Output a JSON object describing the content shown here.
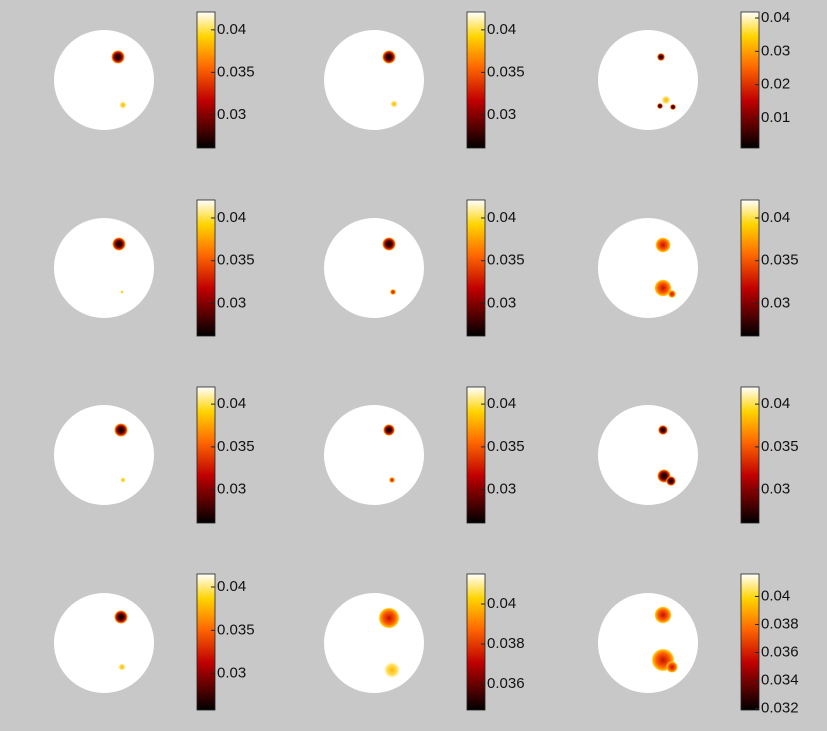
{
  "panels": [
    {
      "colorbar": {
        "clim": [
          0.0261,
          0.0421
        ],
        "ticks": [
          0.03,
          0.035,
          0.04
        ]
      }
    },
    {
      "colorbar": {
        "clim": [
          0.0261,
          0.0421
        ],
        "ticks": [
          0.03,
          0.035,
          0.04
        ]
      }
    },
    {
      "colorbar": {
        "clim": [
          0.001,
          0.0418
        ],
        "ticks": [
          0.01,
          0.02,
          0.03,
          0.04
        ]
      }
    },
    {
      "colorbar": {
        "clim": [
          0.0262,
          0.0421
        ],
        "ticks": [
          0.03,
          0.035,
          0.04
        ]
      }
    },
    {
      "colorbar": {
        "clim": [
          0.0262,
          0.0421
        ],
        "ticks": [
          0.03,
          0.035,
          0.04
        ]
      }
    },
    {
      "colorbar": {
        "clim": [
          0.0262,
          0.0421
        ],
        "ticks": [
          0.03,
          0.035,
          0.04
        ]
      }
    },
    {
      "colorbar": {
        "clim": [
          0.0261,
          0.042
        ],
        "ticks": [
          0.03,
          0.035,
          0.04
        ]
      }
    },
    {
      "colorbar": {
        "clim": [
          0.0261,
          0.042
        ],
        "ticks": [
          0.03,
          0.035,
          0.04
        ]
      }
    },
    {
      "colorbar": {
        "clim": [
          0.0261,
          0.042
        ],
        "ticks": [
          0.03,
          0.035,
          0.04
        ]
      }
    },
    {
      "colorbar": {
        "clim": [
          0.0258,
          0.0415
        ],
        "ticks": [
          0.03,
          0.035,
          0.04
        ]
      }
    },
    {
      "colorbar": {
        "clim": [
          0.0347,
          0.0415
        ],
        "ticks": [
          0.036,
          0.038,
          0.04
        ]
      }
    },
    {
      "colorbar": {
        "clim": [
          0.0319,
          0.0416
        ],
        "ticks": [
          0.032,
          0.034,
          0.036,
          0.038,
          0.04
        ]
      }
    }
  ]
}
